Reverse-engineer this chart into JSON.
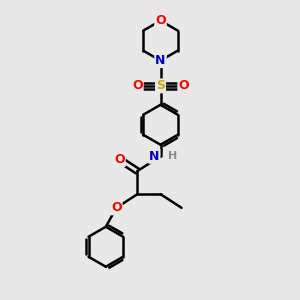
{
  "bg_color": "#e8e8e8",
  "atom_colors": {
    "C": "#000000",
    "N": "#0000cc",
    "O": "#ff0000",
    "S": "#ccaa00",
    "H": "#888888"
  },
  "bond_color": "#000000",
  "bond_width": 1.8,
  "figsize": [
    3.0,
    3.0
  ],
  "dpi": 100
}
